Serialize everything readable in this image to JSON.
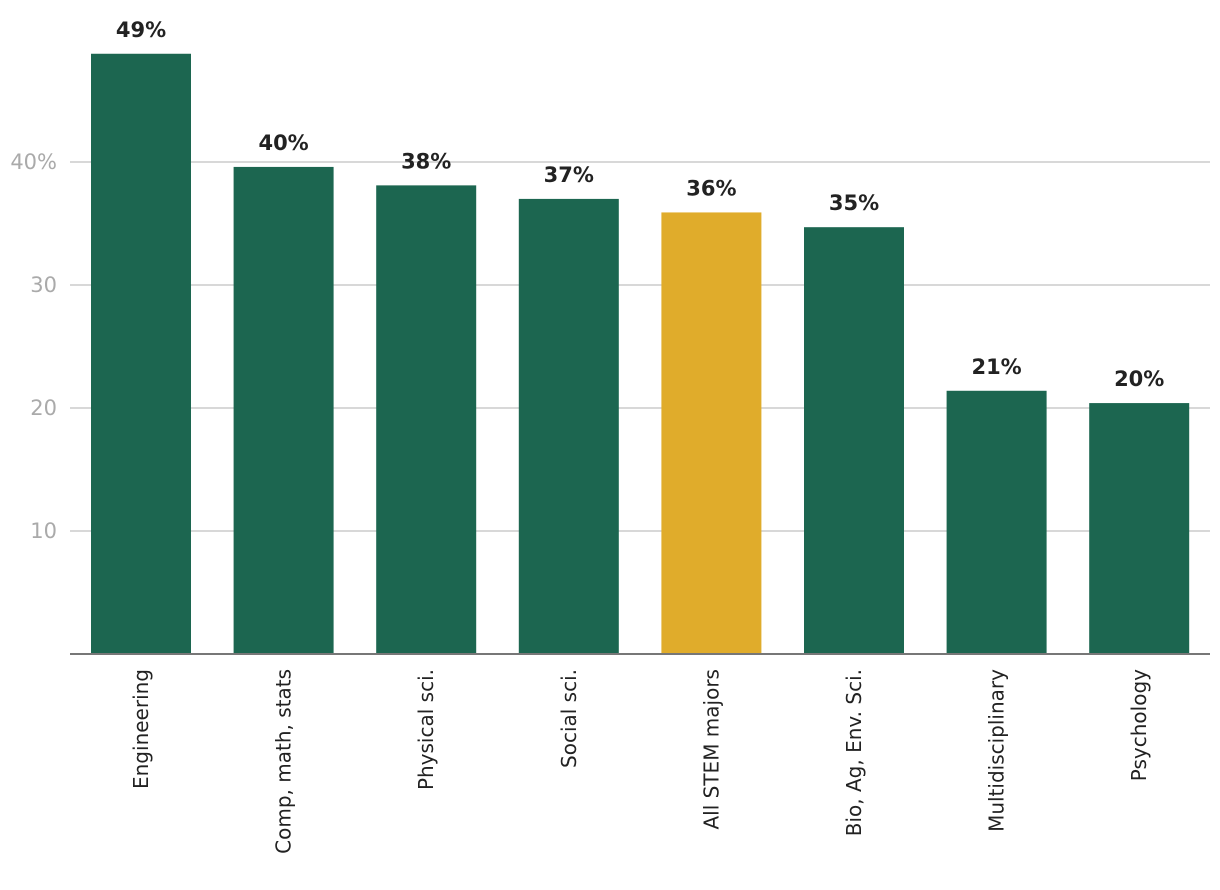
{
  "chart_data": {
    "type": "bar",
    "title": "",
    "xlabel": "",
    "ylabel": "",
    "categories": [
      "Engineering",
      "Comp, math, stats",
      "Physical sci.",
      "Social sci.",
      "All STEM majors",
      "Bio, Ag, Env. Sci.",
      "Multidisciplinary",
      "Psychology"
    ],
    "values": [
      48.8,
      39.6,
      38.1,
      37.0,
      35.9,
      34.7,
      21.4,
      20.4
    ],
    "data_labels": [
      "49%",
      "40%",
      "38%",
      "37%",
      "36%",
      "35%",
      "21%",
      "20%"
    ],
    "yticks": [
      10,
      20,
      30,
      40
    ],
    "ytick_labels": [
      "10",
      "20",
      "30",
      "40%"
    ],
    "ylim": [
      0,
      50
    ],
    "grid": true,
    "colors": {
      "default": "#1c6650",
      "highlight": "#e0ac2b"
    },
    "highlight_category": "All STEM majors",
    "legend": "none"
  }
}
